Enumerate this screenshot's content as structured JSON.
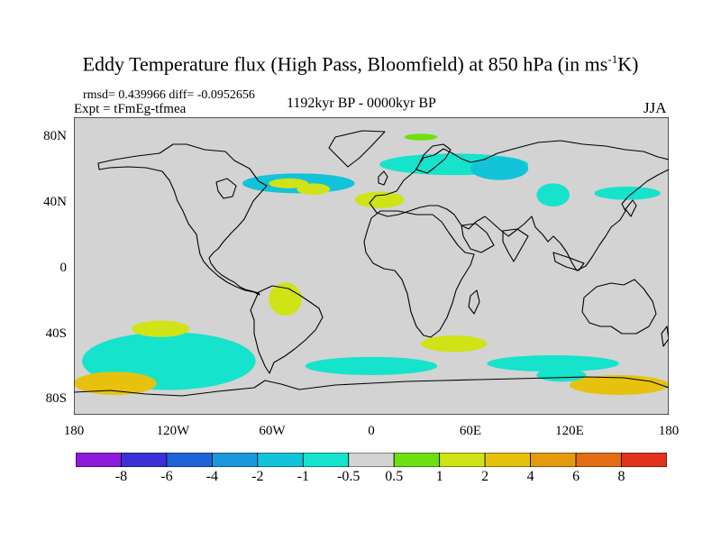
{
  "title": {
    "main": "Eddy Temperature flux (High Pass, Bloomfield) at 850 hPa (in ms",
    "sup": "-1",
    "tail": "K)"
  },
  "stats": "rmsd= 0.439966 diff= -0.0952656",
  "expt": "Expt = tFmEg-tfmea",
  "period": "1192kyr BP - 0000kyr BP",
  "season": "JJA",
  "lat_labels": [
    "80N",
    "40N",
    "0",
    "40S",
    "80S"
  ],
  "lon_labels": [
    "180",
    "120W",
    "60W",
    "0",
    "60E",
    "120E",
    "180"
  ],
  "colors": {
    "ocean": "#d3d3d3",
    "colorbar": [
      "#8c1bdc",
      "#3c2fd8",
      "#1e64d6",
      "#1b98dc",
      "#12c3d9",
      "#16e3cc",
      "#d3d3d3",
      "#6fe00f",
      "#cfe317",
      "#e6c20e",
      "#e59a0e",
      "#e36d14",
      "#e0321c"
    ]
  },
  "colorbar_labels": [
    "-8",
    "-6",
    "-4",
    "-2",
    "-1",
    "-0.5",
    "0.5",
    "1",
    "2",
    "4",
    "6",
    "8"
  ],
  "chart_data": {
    "type": "heatmap",
    "title": "Eddy Temperature flux (High Pass, Bloomfield) at 850 hPa (in ms-1K)",
    "subtitle": "1192kyr BP - 0000kyr BP",
    "season": "JJA",
    "rmsd": 0.439966,
    "diff": -0.0952656,
    "xlim": [
      -180,
      180
    ],
    "ylim": [
      -90,
      90
    ],
    "x_ticks": [
      "180",
      "120W",
      "60W",
      "0",
      "60E",
      "120E",
      "180"
    ],
    "y_ticks": [
      "80N",
      "40N",
      "0",
      "40S",
      "80S"
    ],
    "levels": [
      -8,
      -6,
      -4,
      -2,
      -1,
      -0.5,
      0.5,
      1,
      2,
      4,
      6,
      8
    ],
    "anomaly_regions": [
      {
        "name": "north-atlantic",
        "lon": [
          -78,
          -10
        ],
        "lat": [
          44,
          56
        ],
        "value": -1.5
      },
      {
        "name": "north-atlantic-core",
        "lon": [
          -62,
          -38
        ],
        "lat": [
          47,
          53
        ],
        "value": 1.5
      },
      {
        "name": "north-atlantic-core2",
        "lon": [
          -45,
          -25
        ],
        "lat": [
          43,
          50
        ],
        "value": 1.5
      },
      {
        "name": "europe",
        "lon": [
          -10,
          20
        ],
        "lat": [
          35,
          45
        ],
        "value": 1
      },
      {
        "name": "eurasia-north",
        "lon": [
          5,
          95
        ],
        "lat": [
          55,
          68
        ],
        "value": -1
      },
      {
        "name": "west-siberia",
        "lon": [
          60,
          95
        ],
        "lat": [
          52,
          66
        ],
        "value": -1.5
      },
      {
        "name": "arctic-patch",
        "lon": [
          20,
          40
        ],
        "lat": [
          76,
          80
        ],
        "value": 0.8
      },
      {
        "name": "central-asia",
        "lon": [
          100,
          120
        ],
        "lat": [
          36,
          50
        ],
        "value": -1
      },
      {
        "name": "north-pacific",
        "lon": [
          135,
          175
        ],
        "lat": [
          40,
          48
        ],
        "value": -0.8
      },
      {
        "name": "south-pacific",
        "lon": [
          -175,
          -70
        ],
        "lat": [
          -75,
          -40
        ],
        "value": -1
      },
      {
        "name": "south-pacific-band",
        "lon": [
          -145,
          -110
        ],
        "lat": [
          -43,
          -33
        ],
        "value": 1
      },
      {
        "name": "ross-sea",
        "lon": [
          -180,
          -130
        ],
        "lat": [
          -78,
          -64
        ],
        "value": 2
      },
      {
        "name": "south-america",
        "lon": [
          -62,
          -42
        ],
        "lat": [
          -30,
          -10
        ],
        "value": 1
      },
      {
        "name": "south-atlantic",
        "lon": [
          -40,
          40
        ],
        "lat": [
          -66,
          -55
        ],
        "value": -1
      },
      {
        "name": "south-indian",
        "lon": [
          30,
          70
        ],
        "lat": [
          -52,
          -42
        ],
        "value": 1.5
      },
      {
        "name": "south-indian-band",
        "lon": [
          70,
          150
        ],
        "lat": [
          -64,
          -54
        ],
        "value": -1
      },
      {
        "name": "east-antarctic",
        "lon": [
          120,
          180
        ],
        "lat": [
          -78,
          -66
        ],
        "value": 2
      },
      {
        "name": "east-antarctic-west",
        "lon": [
          100,
          130
        ],
        "lat": [
          -70,
          -62
        ],
        "value": -1
      }
    ]
  }
}
